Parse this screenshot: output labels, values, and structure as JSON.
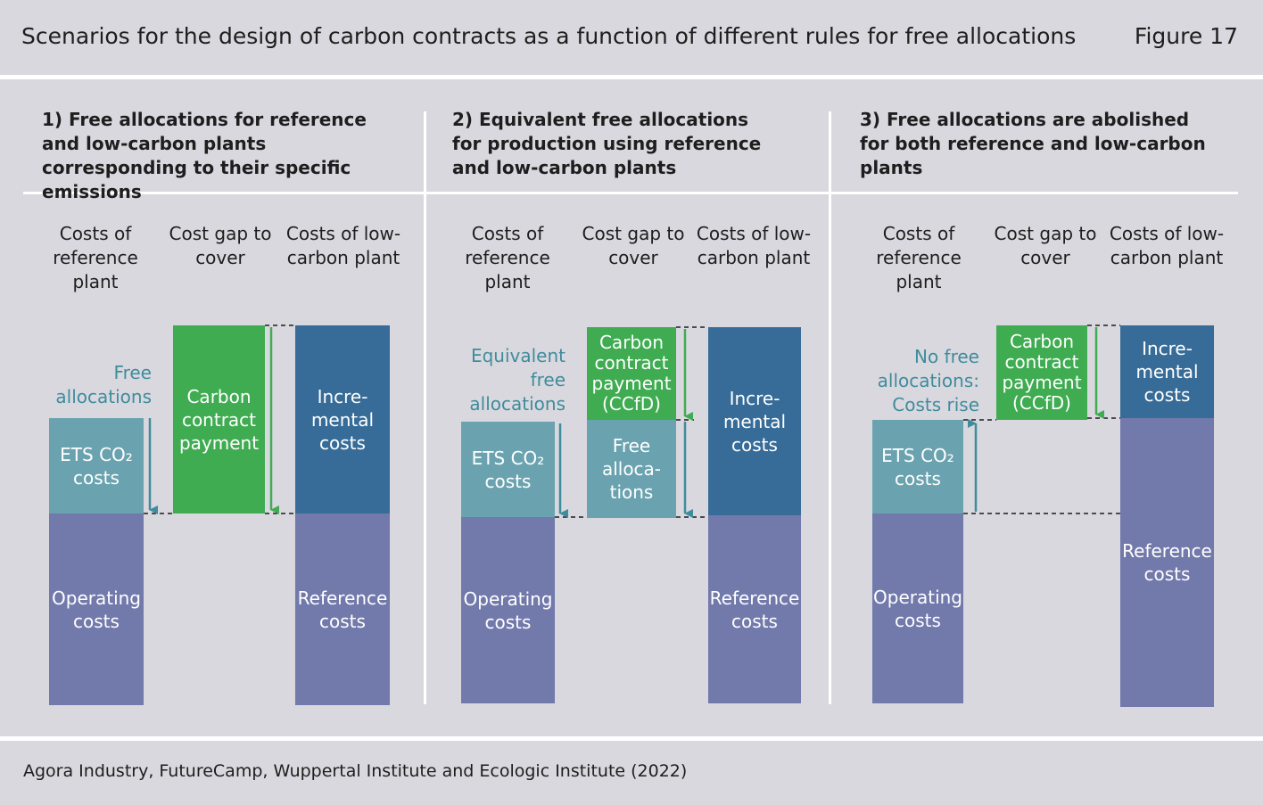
{
  "header": {
    "title": "Scenarios for the design of carbon contracts as a function of different rules for free allocations",
    "figure": "Figure 17"
  },
  "column_headers": {
    "reference": "Costs of reference plant",
    "gap": "Cost gap to cover",
    "low_carbon": "Costs of low-carbon plant"
  },
  "panels": [
    {
      "title": "1) Free allocations for reference and low-carbon plants corresponding to their specific emissions",
      "note": "Free allocations",
      "bars": {
        "operating": "Operating costs",
        "ets": "ETS CO₂ costs",
        "carbon_payment": "Carbon contract payment",
        "incremental": "Incre-mental costs",
        "reference": "Reference costs"
      }
    },
    {
      "title": "2) Equivalent free allocations for production using reference and low-carbon plants",
      "note": "Equivalent free allocations",
      "bars": {
        "operating": "Operating costs",
        "ets": "ETS CO₂ costs",
        "carbon_payment": "Carbon contract payment (CCfD)",
        "free_alloc": "Free alloca-tions",
        "incremental": "Incre-mental costs",
        "reference": "Reference costs"
      }
    },
    {
      "title": "3) Free allocations are abolished for both reference and low-carbon plants",
      "note": "No free allocations: Costs rise",
      "bars": {
        "operating": "Operating costs",
        "ets": "ETS CO₂ costs",
        "carbon_payment": "Carbon contract payment (CCfD)",
        "incremental": "Incre-mental costs",
        "reference": "Reference costs"
      }
    }
  ],
  "footer": {
    "source": "Agora Industry, FutureCamp, Wuppertal Institute and Ecologic Institute (2022)"
  },
  "colors": {
    "operating": "#7279ab",
    "ets": "#6aa3af",
    "carbon_payment": "#3fac52",
    "incremental": "#376c98",
    "arrow_teal": "#3f8c9c",
    "background": "#d9d8df"
  }
}
